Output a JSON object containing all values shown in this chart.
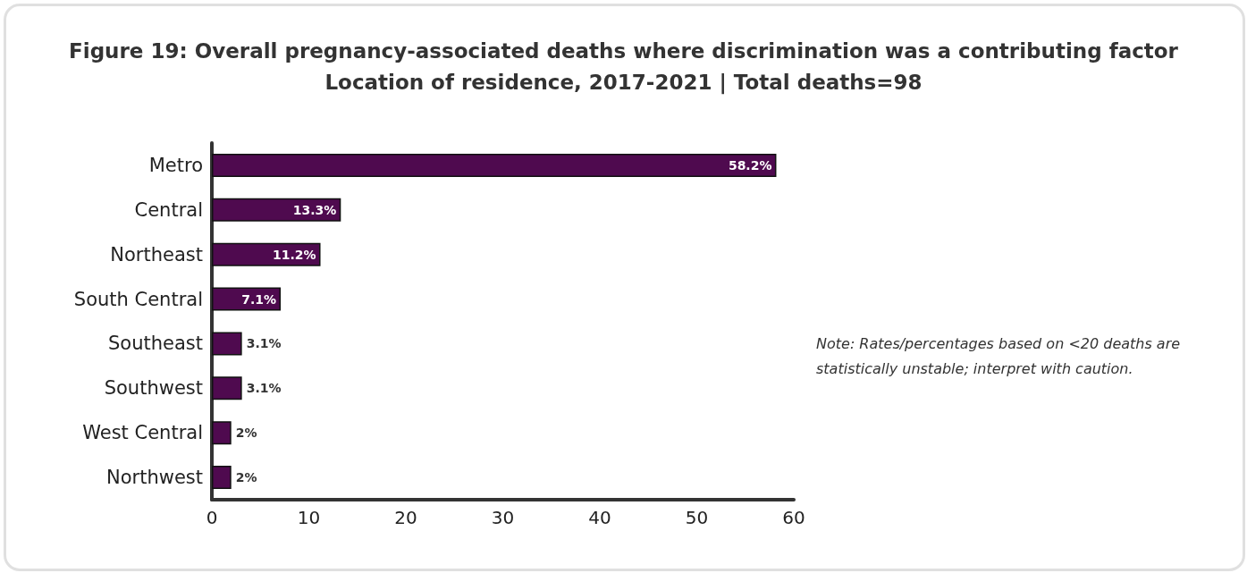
{
  "chart_data": {
    "type": "bar",
    "orientation": "horizontal",
    "title": "Figure 19: Overall pregnancy-associated deaths where discrimination was a contributing factor",
    "subtitle": "Location of residence, 2017-2021 | Total deaths=98",
    "categories": [
      "Metro",
      "Central",
      "Northeast",
      "South Central",
      "Southeast",
      "Southwest",
      "West Central",
      "Northwest"
    ],
    "values": [
      58.2,
      13.3,
      11.2,
      7.1,
      3.1,
      3.1,
      2,
      2
    ],
    "value_labels": [
      "58.2%",
      "13.3%",
      "11.2%",
      "7.1%",
      "3.1%",
      "3.1%",
      "2%",
      "2%"
    ],
    "color": "#4f0a4f",
    "xlim": [
      0,
      60
    ],
    "xticks": [
      0,
      10,
      20,
      30,
      40,
      50,
      60
    ],
    "grid": false,
    "annotations": [
      "Note: Rates/percentages based on <20 deaths are statistically unstable; interpret with caution."
    ]
  }
}
